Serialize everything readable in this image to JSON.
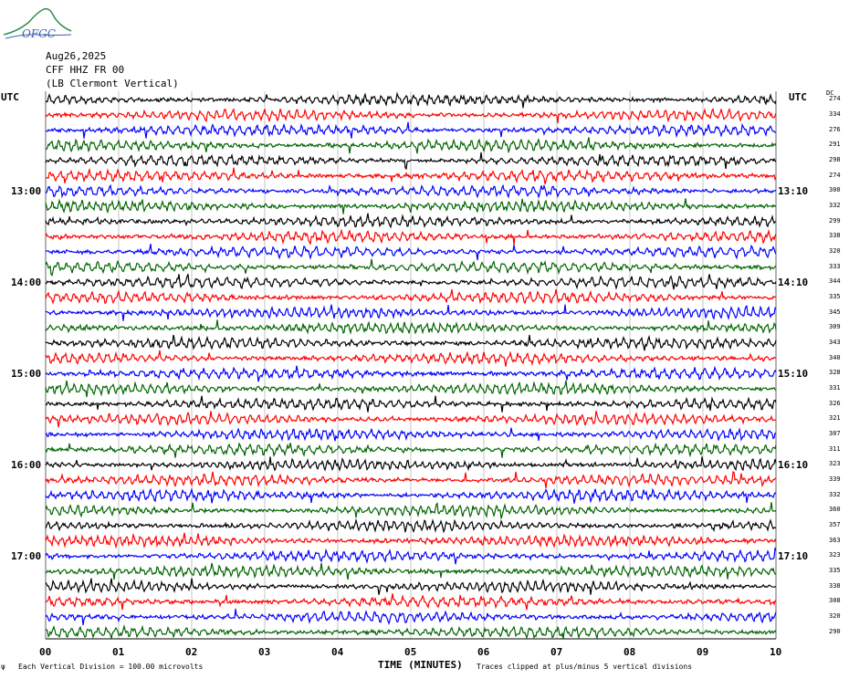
{
  "logo": {
    "text": "OFGC",
    "icon": "ofgc-volcano-logo-icon"
  },
  "header": {
    "date": "Aug26,2025",
    "station": "CFF HHZ FR 00",
    "location": "(LB  Clermont Vertical)"
  },
  "utc_left": "UTC",
  "utc_right": "UTC",
  "dc_label": "DC",
  "left_times": [
    "13:00",
    "14:00",
    "15:00",
    "16:00",
    "17:00"
  ],
  "right_times": [
    "13:10",
    "14:10",
    "15:10",
    "16:10",
    "17:10"
  ],
  "footer": {
    "scale": "Each Vertical Division =  100.00 microvolts",
    "clip": "Traces clipped at plus/minus 5 vertical divisions",
    "corner_mark": "ψ"
  },
  "colors": {
    "trace_cycle": [
      "#000000",
      "#ff0000",
      "#0000ff",
      "#006400"
    ],
    "grid": "#a0a0a0"
  },
  "chart_data": {
    "type": "line",
    "title": "",
    "xlabel": "TIME (MINUTES)",
    "ylabel": "",
    "x_ticks": [
      "00",
      "01",
      "02",
      "03",
      "04",
      "05",
      "06",
      "07",
      "08",
      "09",
      "10"
    ],
    "xlim": [
      0,
      10
    ],
    "trace_count": 36,
    "trace_minutes": 10,
    "dc_offsets": [
      274,
      334,
      276,
      291,
      298,
      274,
      300,
      332,
      299,
      338,
      320,
      333,
      344,
      335,
      345,
      309,
      343,
      340,
      328,
      331,
      326,
      321,
      307,
      311,
      323,
      339,
      332,
      360,
      357,
      363,
      323,
      335,
      338,
      308,
      320,
      290
    ],
    "grid": "vertical lines each minute"
  }
}
